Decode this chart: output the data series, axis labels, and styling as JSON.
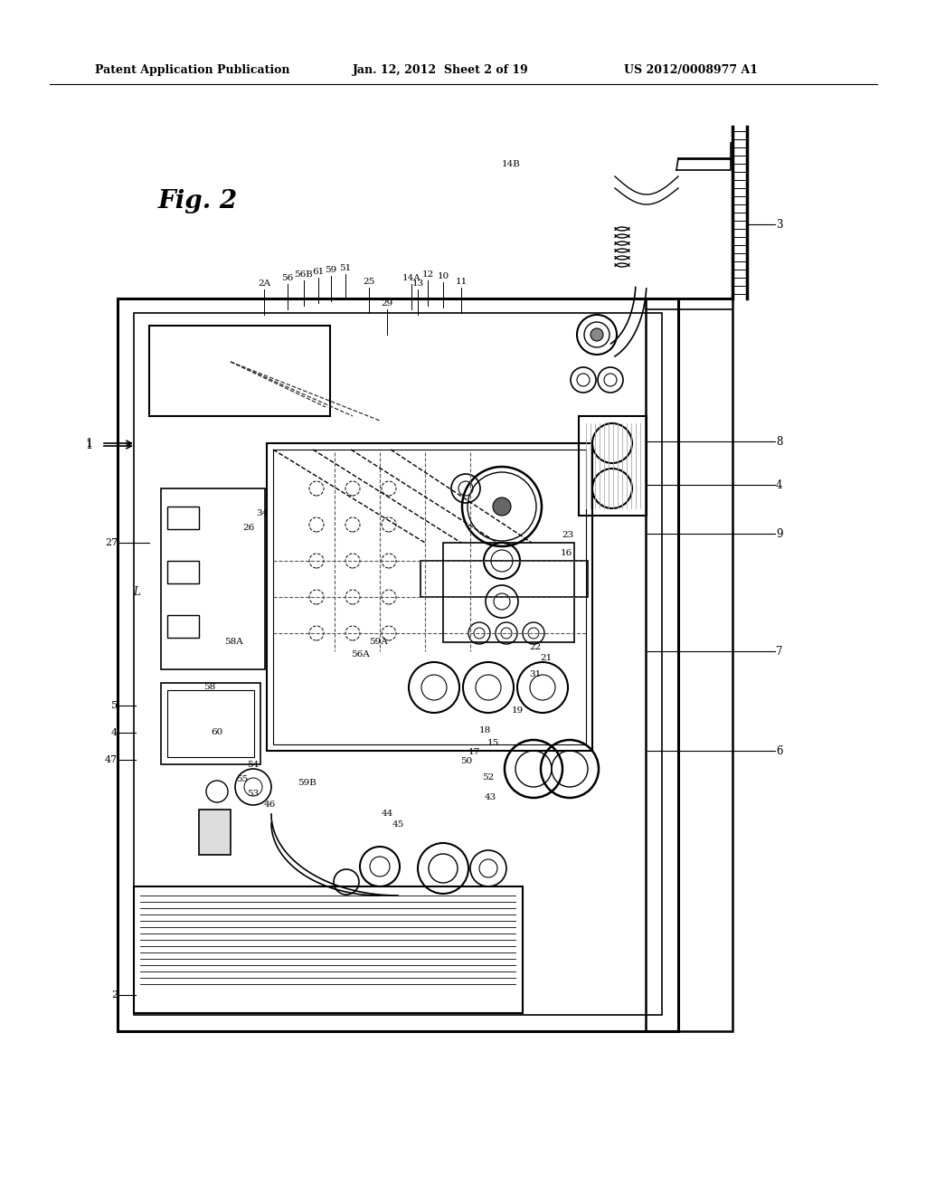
{
  "header_left": "Patent Application Publication",
  "header_center": "Jan. 12, 2012  Sheet 2 of 19",
  "header_right": "US 2012/0008977 A1",
  "fig_label": "Fig. 2",
  "background": "#ffffff",
  "line_color": "#000000"
}
